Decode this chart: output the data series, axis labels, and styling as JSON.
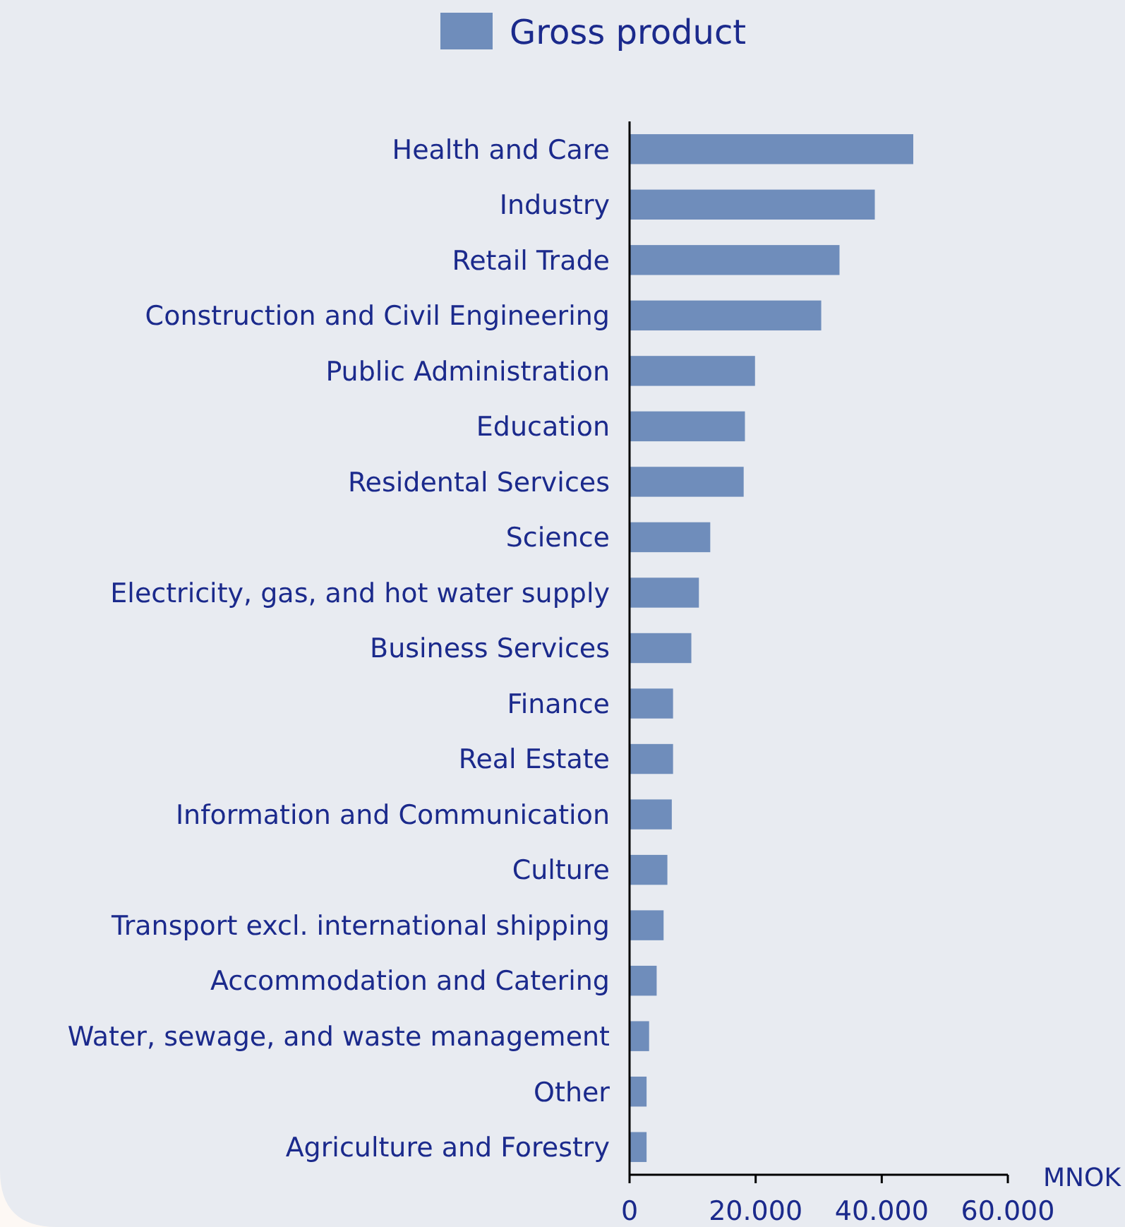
{
  "chart_data": {
    "type": "bar",
    "orientation": "horizontal",
    "categories": [
      "Health and Care",
      "Industry",
      "Retail Trade",
      "Construction and Civil Engineering",
      "Public Administration",
      "Education",
      "Residental Services",
      "Science",
      "Electricity, gas, and hot water supply",
      "Business Services",
      "Finance",
      "Real Estate",
      "Information and Communication",
      "Culture",
      "Transport excl. international shipping",
      "Accommodation and Catering",
      "Water, sewage, and waste management",
      "Other",
      "Agriculture and Forestry"
    ],
    "series": [
      {
        "name": "Gross product",
        "color": "#6f8dbb",
        "values": [
          45000,
          38900,
          33300,
          30400,
          19900,
          18300,
          18100,
          12800,
          11000,
          9800,
          6900,
          6900,
          6700,
          6000,
          5400,
          4300,
          3100,
          2700,
          2700
        ]
      }
    ],
    "xlim": [
      0,
      60000
    ],
    "xticks": [
      0,
      {
        "value": 20000,
        "label": "20.000"
      },
      {
        "value": 40000,
        "label": "40.000"
      },
      {
        "value": 60000,
        "label": "60.000"
      }
    ],
    "xlabel": "MNOK",
    "legend": "top",
    "grid": false
  }
}
